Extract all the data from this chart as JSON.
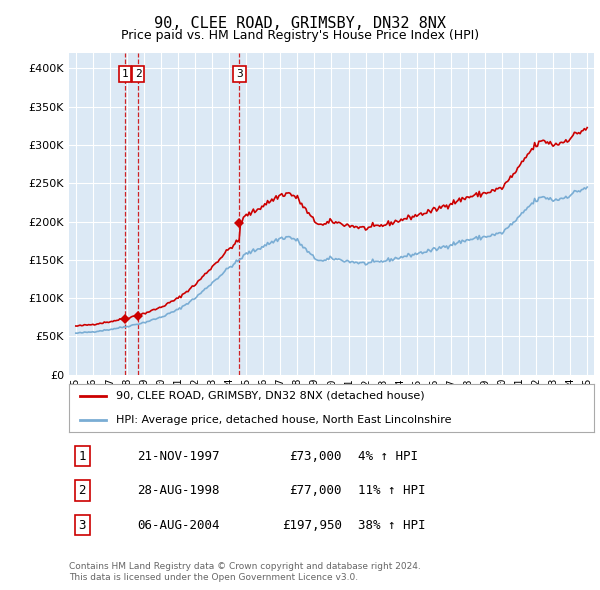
{
  "title": "90, CLEE ROAD, GRIMSBY, DN32 8NX",
  "subtitle": "Price paid vs. HM Land Registry's House Price Index (HPI)",
  "footer1": "Contains HM Land Registry data © Crown copyright and database right 2024.",
  "footer2": "This data is licensed under the Open Government Licence v3.0.",
  "legend_property": "90, CLEE ROAD, GRIMSBY, DN32 8NX (detached house)",
  "legend_hpi": "HPI: Average price, detached house, North East Lincolnshire",
  "transactions": [
    {
      "num": 1,
      "date": "21-NOV-1997",
      "price": 73000,
      "hpi_pct": "4% ↑ HPI",
      "year": 1997.89
    },
    {
      "num": 2,
      "date": "28-AUG-1998",
      "price": 77000,
      "hpi_pct": "11% ↑ HPI",
      "year": 1998.66
    },
    {
      "num": 3,
      "date": "06-AUG-2004",
      "price": 197950,
      "hpi_pct": "38% ↑ HPI",
      "year": 2004.6
    }
  ],
  "property_color": "#cc0000",
  "hpi_color": "#7aadd4",
  "plot_bg": "#dce9f5",
  "grid_color": "#ffffff",
  "vline_color": "#cc0000",
  "ylim": [
    0,
    420000
  ],
  "yticks": [
    0,
    50000,
    100000,
    150000,
    200000,
    250000,
    300000,
    350000,
    400000
  ],
  "xlim_start": 1994.6,
  "xlim_end": 2025.4
}
